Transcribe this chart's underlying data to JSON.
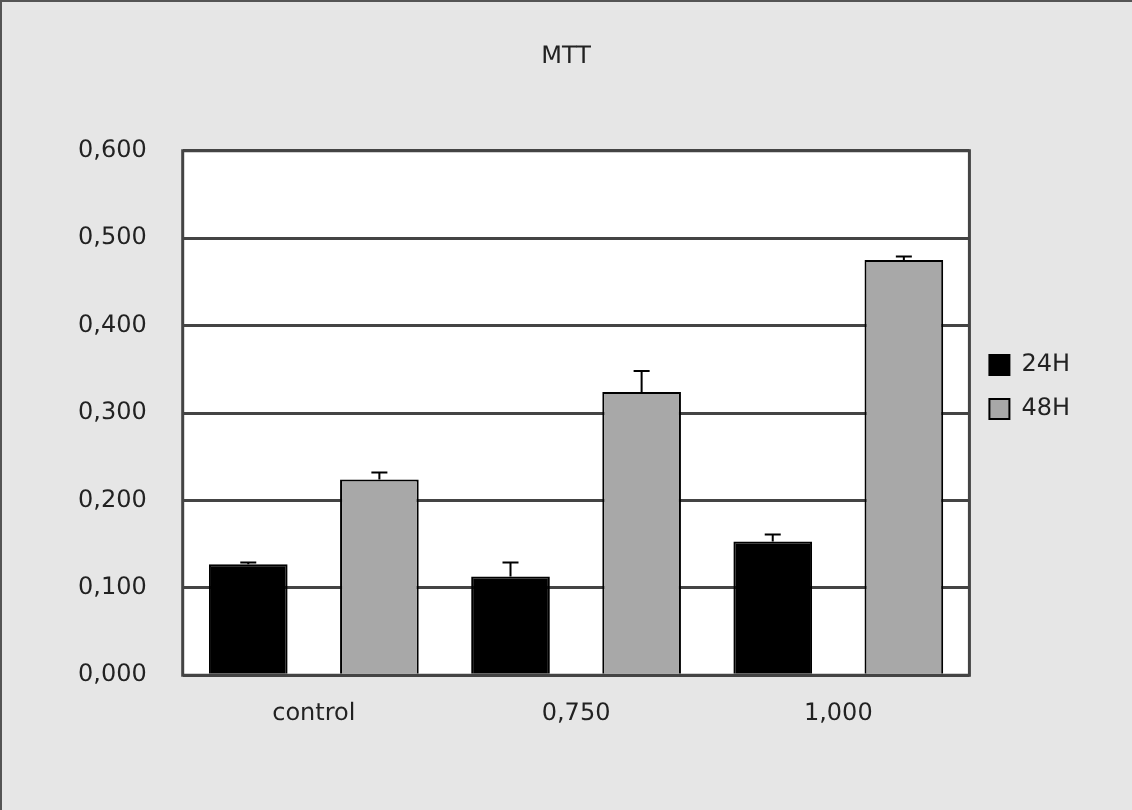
{
  "chart_data": {
    "type": "bar",
    "title": "MTT",
    "categories": [
      "control",
      "0,750",
      "1,000"
    ],
    "series": [
      {
        "name": "24H",
        "color": "#000000",
        "values": [
          0.127,
          0.113,
          0.153
        ],
        "errors": [
          [
            0.127,
            0.129
          ],
          [
            0.113,
            0.129
          ],
          [
            0.153,
            0.161
          ]
        ]
      },
      {
        "name": "48H",
        "color": "#a8a8a8",
        "values": [
          0.224,
          0.324,
          0.475
        ],
        "errors": [
          [
            0.224,
            0.232
          ],
          [
            0.324,
            0.348
          ],
          [
            0.475,
            0.479
          ]
        ]
      }
    ],
    "ylim": [
      0,
      0.6
    ],
    "yticks": [
      {
        "value": 0,
        "label": "0,000"
      },
      {
        "value": 0.1,
        "label": "0,100"
      },
      {
        "value": 0.2,
        "label": "0,200"
      },
      {
        "value": 0.3,
        "label": "0,300"
      },
      {
        "value": 0.4,
        "label": "0,400"
      },
      {
        "value": 0.5,
        "label": "0,500"
      },
      {
        "value": 0.6,
        "label": "0,600"
      }
    ],
    "grid": "y",
    "legend": "right"
  }
}
